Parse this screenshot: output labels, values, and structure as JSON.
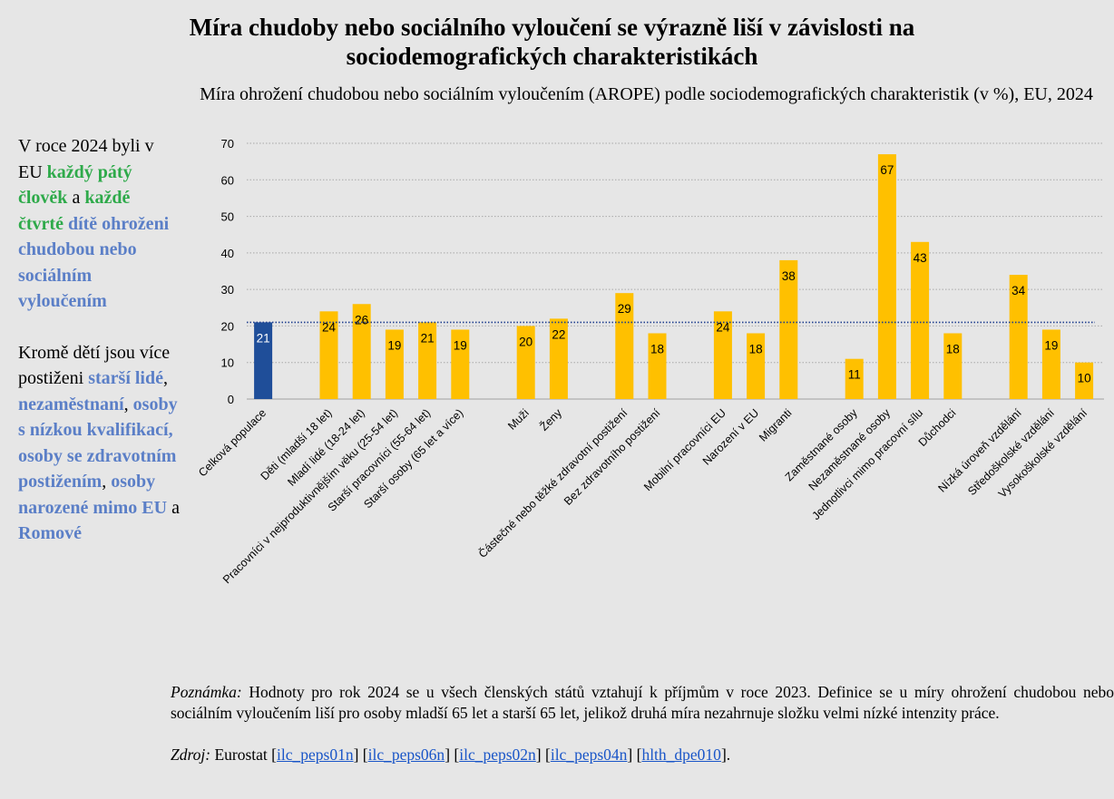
{
  "header": {
    "title": "Míra chudoby nebo sociálního vyloučení se výrazně liší v závislosti na sociodemografických charakteristikách"
  },
  "sidebar": {
    "paragraphs": [
      [
        {
          "text": "V roce 2024 byli v EU ",
          "color": "#000000",
          "bold": false
        },
        {
          "text": "každý pátý člověk",
          "color": "#2eaa4a",
          "bold": true
        },
        {
          "text": " a ",
          "color": "#000000",
          "bold": false
        },
        {
          "text": "každé čtvrté",
          "color": "#2eaa4a",
          "bold": true
        },
        {
          "text": " dítě ohroženi chudobou nebo sociálním vyloučením",
          "color": "#5b7fc7",
          "bold": true
        }
      ],
      [
        {
          "text": "Kromě dětí jsou více postiženi ",
          "color": "#000000",
          "bold": false
        },
        {
          "text": "starší lidé",
          "color": "#5b7fc7",
          "bold": true
        },
        {
          "text": ", ",
          "color": "#000000",
          "bold": false
        },
        {
          "text": "nezaměstnaní",
          "color": "#5b7fc7",
          "bold": true
        },
        {
          "text": ", ",
          "color": "#000000",
          "bold": false
        },
        {
          "text": "osoby s nízkou kvalifikací, osoby se zdravotním postižením",
          "color": "#5b7fc7",
          "bold": true
        },
        {
          "text": ", ",
          "color": "#000000",
          "bold": false
        },
        {
          "text": "osoby narozené mimo EU",
          "color": "#5b7fc7",
          "bold": true
        },
        {
          "text": " a ",
          "color": "#000000",
          "bold": false
        },
        {
          "text": "Romové",
          "color": "#5b7fc7",
          "bold": true
        }
      ]
    ]
  },
  "chart_data": {
    "type": "bar",
    "title": "Míra ohrožení chudobou nebo sociálním vyloučením (AROPE) podle sociodemografických charakteristik (v %), EU, 2024",
    "categories": [
      "Celková populace",
      null,
      "Děti (mladší 18 let)",
      "Mladí lidé (18-24 let)",
      "Pracovníci v nejproduktivnějším věku (25-54 let)",
      "Starší pracovníci (55-64 let)",
      "Starší osoby (65 let a více)",
      null,
      "Muži",
      "Ženy",
      null,
      "Částečné nebo těžké zdravotní postižení",
      "Bez zdravotního postižení",
      null,
      "Mobilní pracovníci EU",
      "Narození v EU",
      "Migranti",
      null,
      "Zaměstnané osoby",
      "Nezaměstnané osoby",
      "Jednotlivci mimo pracovní sílu",
      "Důchodci",
      null,
      "Nízká úroveň vzdělání",
      "Středoškolské vzdělání",
      "Vysokoškolské vzdělání"
    ],
    "values": [
      21,
      null,
      24,
      26,
      19,
      21,
      19,
      null,
      20,
      22,
      null,
      29,
      18,
      null,
      24,
      18,
      38,
      null,
      11,
      67,
      43,
      18,
      null,
      34,
      19,
      10
    ],
    "colors": [
      "#1f4e99",
      null,
      "#ffc000",
      "#ffc000",
      "#ffc000",
      "#ffc000",
      "#ffc000",
      null,
      "#ffc000",
      "#ffc000",
      null,
      "#ffc000",
      "#ffc000",
      null,
      "#ffc000",
      "#ffc000",
      "#ffc000",
      null,
      "#ffc000",
      "#ffc000",
      "#ffc000",
      "#ffc000",
      null,
      "#ffc000",
      "#ffc000",
      "#ffc000"
    ],
    "label_colors": [
      "#ffffff",
      null,
      "#000000",
      "#000000",
      "#000000",
      "#000000",
      "#000000",
      null,
      "#000000",
      "#000000",
      null,
      "#000000",
      "#000000",
      null,
      "#000000",
      "#000000",
      "#000000",
      null,
      "#000000",
      "#000000",
      "#000000",
      "#000000",
      null,
      "#000000",
      "#000000",
      "#000000"
    ],
    "reference_line": 21,
    "reference_color": "#1f3f8f",
    "ylim": [
      0,
      70
    ],
    "yticks": [
      0,
      10,
      20,
      30,
      40,
      50,
      60,
      70
    ],
    "grid": true
  },
  "note": {
    "label": "Poznámka:",
    "text": " Hodnoty pro rok 2024 se u všech členských států vztahují k příjmům v roce 2023. Definice se u míry ohrožení chudobou nebo sociálním vyloučením liší pro osoby mladší 65 let a starší 65 let, jelikož druhá míra nezahrnuje složku velmi nízké intenzity práce."
  },
  "source": {
    "label": "Zdroj:",
    "parts": [
      {
        "text": " Eurostat [",
        "link": false
      },
      {
        "text": "ilc_peps01n",
        "link": true
      },
      {
        "text": "] [",
        "link": false
      },
      {
        "text": "ilc_peps06n",
        "link": true
      },
      {
        "text": "] [",
        "link": false
      },
      {
        "text": "ilc_peps02n",
        "link": true
      },
      {
        "text": "] [",
        "link": false
      },
      {
        "text": "ilc_peps04n",
        "link": true
      },
      {
        "text": "] [",
        "link": false
      },
      {
        "text": "hlth_dpe010",
        "link": true
      },
      {
        "text": "].",
        "link": false
      }
    ]
  }
}
